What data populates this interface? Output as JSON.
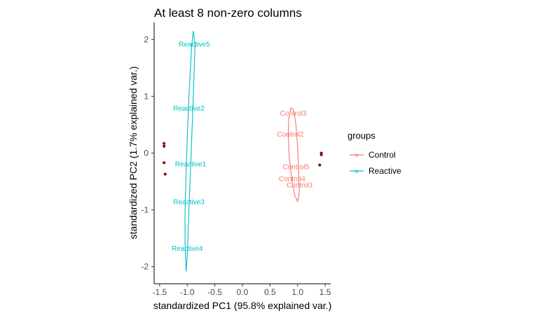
{
  "chart_data": {
    "type": "scatter",
    "title": "At least 8 non-zero columns",
    "xlabel": "standardized PC1 (95.8% explained var.)",
    "ylabel": "standardized PC2 (1.7% explained var.)",
    "xlim": [
      -1.6,
      1.6
    ],
    "ylim": [
      -2.3,
      2.3
    ],
    "x_ticks": [
      -1.5,
      -1.0,
      -0.5,
      0.0,
      0.5,
      1.0,
      1.5
    ],
    "x_tick_labels": [
      "-1.5",
      "-1.0",
      "-0.5",
      "0.0",
      "0.5",
      "1.0",
      "1.5"
    ],
    "y_ticks": [
      -2,
      -1,
      0,
      1,
      2
    ],
    "y_tick_labels": [
      "-2",
      "-1",
      "0",
      "1",
      "2"
    ],
    "grid": false,
    "legend": {
      "title": "groups",
      "position": "right"
    },
    "series": [
      {
        "name": "Control",
        "color": "#F8766D",
        "points": [
          {
            "label": "Control3",
            "x": 0.92,
            "y": 0.7
          },
          {
            "label": "Control2",
            "x": 0.87,
            "y": 0.33
          },
          {
            "label": "Control5",
            "x": 0.97,
            "y": -0.24
          },
          {
            "label": "Control4",
            "x": 0.9,
            "y": -0.45
          },
          {
            "label": "Control1",
            "x": 1.04,
            "y": -0.56
          }
        ],
        "ellipse": [
          [
            0.88,
            0.8
          ],
          [
            0.84,
            0.6
          ],
          [
            0.83,
            0.3
          ],
          [
            0.85,
            -0.1
          ],
          [
            0.9,
            -0.5
          ],
          [
            0.95,
            -0.75
          ],
          [
            1.0,
            -0.85
          ],
          [
            1.03,
            -0.7
          ],
          [
            1.02,
            -0.3
          ],
          [
            1.0,
            0.1
          ],
          [
            0.97,
            0.5
          ],
          [
            0.93,
            0.75
          ],
          [
            0.88,
            0.8
          ]
        ]
      },
      {
        "name": "Reactive",
        "color": "#00BFC4",
        "points": [
          {
            "label": "Reactive5",
            "x": -0.87,
            "y": 1.92
          },
          {
            "label": "Reactive2",
            "x": -0.97,
            "y": 0.79
          },
          {
            "label": "Reactive1",
            "x": -0.94,
            "y": -0.19
          },
          {
            "label": "Reactive3",
            "x": -0.97,
            "y": -0.86
          },
          {
            "label": "Reactive4",
            "x": -1.0,
            "y": -1.68
          }
        ],
        "ellipse": [
          [
            -0.89,
            2.15
          ],
          [
            -0.92,
            1.9
          ],
          [
            -0.97,
            1.0
          ],
          [
            -1.01,
            0.0
          ],
          [
            -1.04,
            -1.0
          ],
          [
            -1.04,
            -1.6
          ],
          [
            -1.02,
            -2.08
          ],
          [
            -1.0,
            -1.8
          ],
          [
            -0.97,
            -1.0
          ],
          [
            -0.93,
            0.0
          ],
          [
            -0.89,
            1.0
          ],
          [
            -0.86,
            1.9
          ],
          [
            -0.89,
            2.15
          ]
        ]
      }
    ],
    "marker_points": [
      {
        "x": -1.42,
        "y": 0.17
      },
      {
        "x": -1.42,
        "y": 0.12
      },
      {
        "x": -1.42,
        "y": -0.17
      },
      {
        "x": -1.4,
        "y": -0.37
      },
      {
        "x": 1.43,
        "y": 0.0
      },
      {
        "x": 1.43,
        "y": -0.03
      },
      {
        "x": 1.4,
        "y": -0.21
      }
    ],
    "marker_color": "#8B0000"
  }
}
